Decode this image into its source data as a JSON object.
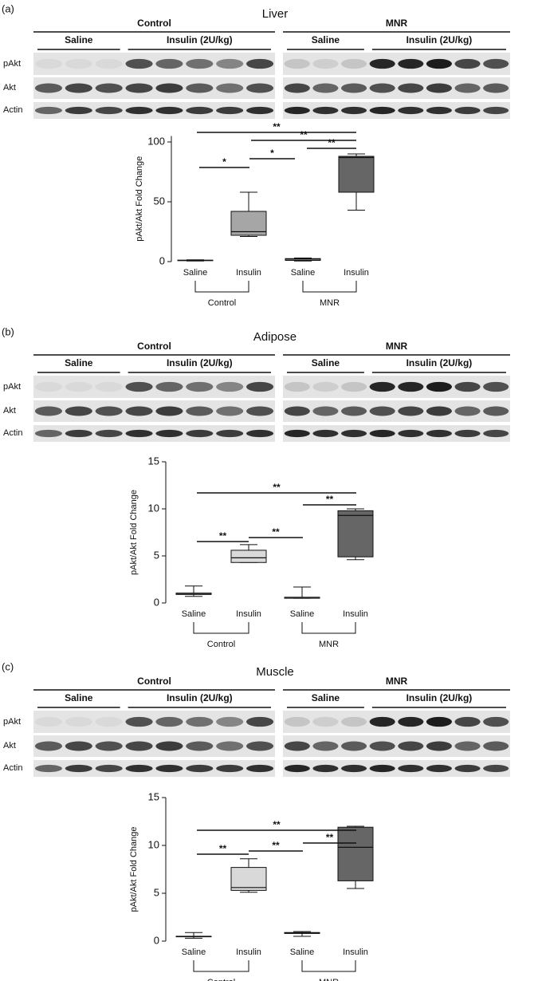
{
  "chart_data": [
    {
      "type": "box",
      "panel": "(a)",
      "title": "Liver",
      "blot": {
        "groups": [
          "Control",
          "MNR"
        ],
        "subgroups": [
          [
            "Saline",
            "Insulin (2U/kg)"
          ],
          [
            "Saline",
            "Insulin (2U/kg)"
          ]
        ],
        "rows": [
          "pAkt",
          "Akt",
          "Actin"
        ]
      },
      "ylabel": "pAkt/Akt Fold Change",
      "ylim": [
        0,
        105
      ],
      "yticks": [
        0,
        50,
        100
      ],
      "categories": [
        "Saline",
        "Insulin",
        "Saline",
        "Insulin"
      ],
      "groups": [
        "Control",
        "MNR"
      ],
      "boxes": [
        {
          "min": 0.5,
          "q1": 0.8,
          "median": 1,
          "q3": 1.2,
          "max": 1.5,
          "color": "#ffffff"
        },
        {
          "min": 21,
          "q1": 22,
          "median": 25,
          "q3": 42,
          "max": 58,
          "color": "#a6a6a6"
        },
        {
          "min": 0.5,
          "q1": 1,
          "median": 2,
          "q3": 2.5,
          "max": 3,
          "color": "#ffffff"
        },
        {
          "min": 43,
          "q1": 58,
          "median": 87,
          "q3": 88,
          "max": 90,
          "color": "#666666"
        }
      ],
      "annotations": [
        "**",
        "**",
        "**",
        "*",
        "*"
      ]
    },
    {
      "type": "box",
      "panel": "(b)",
      "title": "Adipose",
      "blot": {
        "groups": [
          "Control",
          "MNR"
        ],
        "subgroups": [
          [
            "Saline",
            "Insulin (2U/kg)"
          ],
          [
            "Saline",
            "Insulin (2U/kg)"
          ]
        ],
        "rows": [
          "pAkt",
          "Akt",
          "Actin"
        ]
      },
      "ylabel": "pAkt/Akt Fold Change",
      "ylim": [
        0,
        15
      ],
      "yticks": [
        0,
        5,
        10,
        15
      ],
      "categories": [
        "Saline",
        "Insulin",
        "Saline",
        "Insulin"
      ],
      "groups": [
        "Control",
        "MNR"
      ],
      "boxes": [
        {
          "min": 0.7,
          "q1": 0.9,
          "median": 1,
          "q3": 1.05,
          "max": 1.8,
          "color": "#ffffff"
        },
        {
          "min": 4.3,
          "q1": 4.3,
          "median": 4.8,
          "q3": 5.6,
          "max": 6.2,
          "color": "#d9d9d9"
        },
        {
          "min": 0.5,
          "q1": 0.5,
          "median": 0.6,
          "q3": 0.6,
          "max": 1.7,
          "color": "#ffffff"
        },
        {
          "min": 4.6,
          "q1": 4.9,
          "median": 9.3,
          "q3": 9.8,
          "max": 10,
          "color": "#666666"
        }
      ],
      "annotations": [
        "**",
        "**",
        "**",
        "**"
      ]
    },
    {
      "type": "box",
      "panel": "(c)",
      "title": "Muscle",
      "blot": {
        "groups": [
          "Control",
          "MNR"
        ],
        "subgroups": [
          [
            "Saline",
            "Insulin (2U/kg)"
          ],
          [
            "Saline",
            "Insulin (2U/kg)"
          ]
        ],
        "rows": [
          "pAkt",
          "Akt",
          "Actin"
        ]
      },
      "ylabel": "pAkt/Akt Fold Change",
      "ylim": [
        0,
        15
      ],
      "yticks": [
        0,
        5,
        10,
        15
      ],
      "categories": [
        "Saline",
        "Insulin",
        "Saline",
        "Insulin"
      ],
      "groups": [
        "Control",
        "MNR"
      ],
      "boxes": [
        {
          "min": 0.3,
          "q1": 0.45,
          "median": 0.5,
          "q3": 0.5,
          "max": 0.9,
          "color": "#ffffff"
        },
        {
          "min": 5.1,
          "q1": 5.3,
          "median": 5.6,
          "q3": 7.7,
          "max": 8.6,
          "color": "#d9d9d9"
        },
        {
          "min": 0.5,
          "q1": 0.8,
          "median": 0.85,
          "q3": 0.9,
          "max": 1.0,
          "color": "#ffffff"
        },
        {
          "min": 5.5,
          "q1": 6.3,
          "median": 9.8,
          "q3": 11.9,
          "max": 12,
          "color": "#666666"
        }
      ],
      "annotations": [
        "**",
        "**",
        "**",
        "**"
      ]
    }
  ]
}
